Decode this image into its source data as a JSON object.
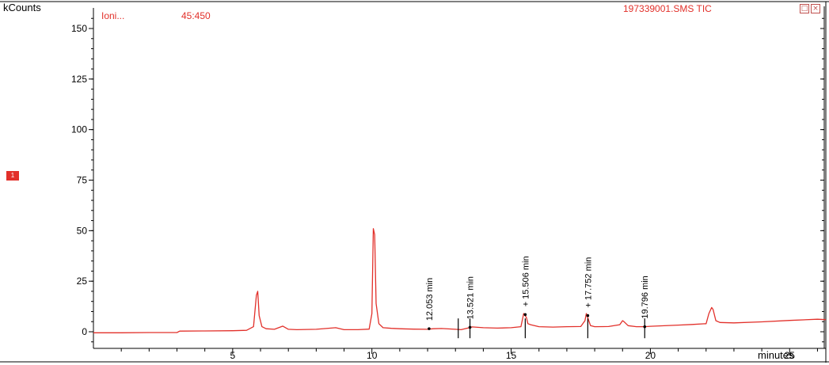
{
  "header": {
    "ylabel": "kCounts",
    "ion_label": "Ioni...",
    "ion_value": "45:450",
    "file_label": "197339001.SMS TIC"
  },
  "badge": "1",
  "window_controls": {
    "restore_icon": "restore-icon",
    "close_icon": "close-icon"
  },
  "colors": {
    "trace": "#e2302a",
    "axis": "#000000",
    "annotation": "#000000"
  },
  "chart_data": {
    "type": "line",
    "title": "",
    "xlabel": "minutes",
    "ylabel": "kCounts",
    "xlim": [
      0,
      26.3
    ],
    "ylim": [
      -5,
      155
    ],
    "xticks": [
      5,
      10,
      15,
      20,
      25
    ],
    "yticks": [
      0,
      25,
      50,
      75,
      100,
      125,
      150
    ],
    "grid": false,
    "series": [
      {
        "x": [
          0.0,
          1.0,
          2.0,
          3.0,
          3.1,
          4.0,
          5.0,
          5.5,
          5.75,
          5.85,
          5.9,
          5.95,
          6.05,
          6.2,
          6.5,
          6.8,
          7.0,
          7.3,
          8.0,
          8.7,
          9.0,
          9.5,
          9.9,
          10.0,
          10.05,
          10.1,
          10.15,
          10.25,
          10.4,
          10.7,
          11.0,
          11.5,
          12.0,
          12.2,
          12.5,
          13.0,
          13.2,
          13.5,
          13.6,
          14.0,
          14.5,
          15.0,
          15.35,
          15.45,
          15.55,
          15.6,
          15.7,
          16.0,
          16.5,
          17.0,
          17.5,
          17.65,
          17.7,
          17.75,
          17.85,
          18.0,
          18.5,
          18.9,
          19.0,
          19.05,
          19.2,
          19.5,
          19.8,
          20.0,
          21.0,
          21.5,
          22.0,
          22.1,
          22.2,
          22.25,
          22.35,
          22.5,
          23.0,
          24.0,
          25.0,
          26.0,
          26.3
        ],
        "values": [
          -0.5,
          -0.5,
          -0.4,
          -0.4,
          0.3,
          0.4,
          0.5,
          0.7,
          2.5,
          18.0,
          20.0,
          8.0,
          2.5,
          1.5,
          1.2,
          2.8,
          1.2,
          1.0,
          1.2,
          2.0,
          1.0,
          1.0,
          1.3,
          9.0,
          51.0,
          48.0,
          14.0,
          4.0,
          2.0,
          1.7,
          1.5,
          1.3,
          1.2,
          1.5,
          1.6,
          1.2,
          1.0,
          2.0,
          2.4,
          2.0,
          1.8,
          2.0,
          2.5,
          9.0,
          7.0,
          4.0,
          3.5,
          2.5,
          2.3,
          2.5,
          2.6,
          5.5,
          9.0,
          7.0,
          3.0,
          2.5,
          2.6,
          3.5,
          5.5,
          5.0,
          3.0,
          2.5,
          2.5,
          2.7,
          3.3,
          3.6,
          4.0,
          9.0,
          12.0,
          11.0,
          5.5,
          4.6,
          4.4,
          4.9,
          5.6,
          6.2,
          6.0
        ]
      }
    ],
    "annotations": [
      {
        "x": 12.053,
        "y": 1.5,
        "label": "12.053 min"
      },
      {
        "x": 13.521,
        "y": 2.2,
        "label": "13.521 min"
      },
      {
        "x": 15.506,
        "y": 8.5,
        "label": "+ 15.506 min"
      },
      {
        "x": 17.752,
        "y": 8.0,
        "label": "+ 17.752 min"
      },
      {
        "x": 19.796,
        "y": 2.5,
        "label": "19.796 min"
      }
    ],
    "baseline_marks": [
      13.1,
      13.521,
      15.506,
      17.752,
      19.796
    ]
  }
}
